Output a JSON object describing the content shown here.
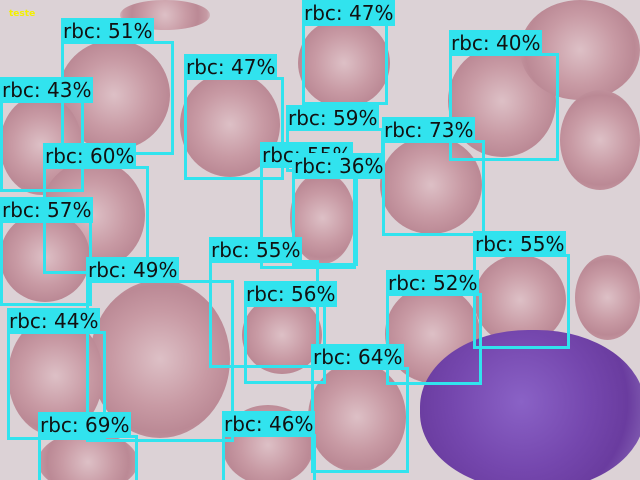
{
  "image_tag": "teste",
  "colors": {
    "box": "#31e3ee",
    "tag": "#f3f000"
  },
  "detections": [
    {
      "class": "rbc",
      "confidence": "51%",
      "text": "rbc: 51%"
    },
    {
      "class": "rbc",
      "confidence": "47%",
      "text": "rbc: 47%"
    },
    {
      "class": "rbc",
      "confidence": "47%",
      "text": "rbc: 47%"
    },
    {
      "class": "rbc",
      "confidence": "40%",
      "text": "rbc: 40%"
    },
    {
      "class": "rbc",
      "confidence": "43%",
      "text": "rbc: 43%"
    },
    {
      "class": "rbc",
      "confidence": "59%",
      "text": "rbc: 59%"
    },
    {
      "class": "rbc",
      "confidence": "73%",
      "text": "rbc: 73%"
    },
    {
      "class": "rbc",
      "confidence": "60%",
      "text": "rbc: 60%"
    },
    {
      "class": "rbc",
      "confidence": "55%",
      "text": "rbc: 55%"
    },
    {
      "class": "rbc",
      "confidence": "36%",
      "text": "rbc: 36%"
    },
    {
      "class": "rbc",
      "confidence": "57%",
      "text": "rbc: 57%"
    },
    {
      "class": "rbc",
      "confidence": "55%",
      "text": "rbc: 55%"
    },
    {
      "class": "rbc",
      "confidence": "55%",
      "text": "rbc: 55%"
    },
    {
      "class": "rbc",
      "confidence": "49%",
      "text": "rbc: 49%"
    },
    {
      "class": "rbc",
      "confidence": "56%",
      "text": "rbc: 56%"
    },
    {
      "class": "rbc",
      "confidence": "52%",
      "text": "rbc: 52%"
    },
    {
      "class": "rbc",
      "confidence": "44%",
      "text": "rbc: 44%"
    },
    {
      "class": "rbc",
      "confidence": "64%",
      "text": "rbc: 64%"
    },
    {
      "class": "rbc",
      "confidence": "69%",
      "text": "rbc: 69%"
    },
    {
      "class": "rbc",
      "confidence": "46%",
      "text": "rbc: 46%"
    }
  ]
}
